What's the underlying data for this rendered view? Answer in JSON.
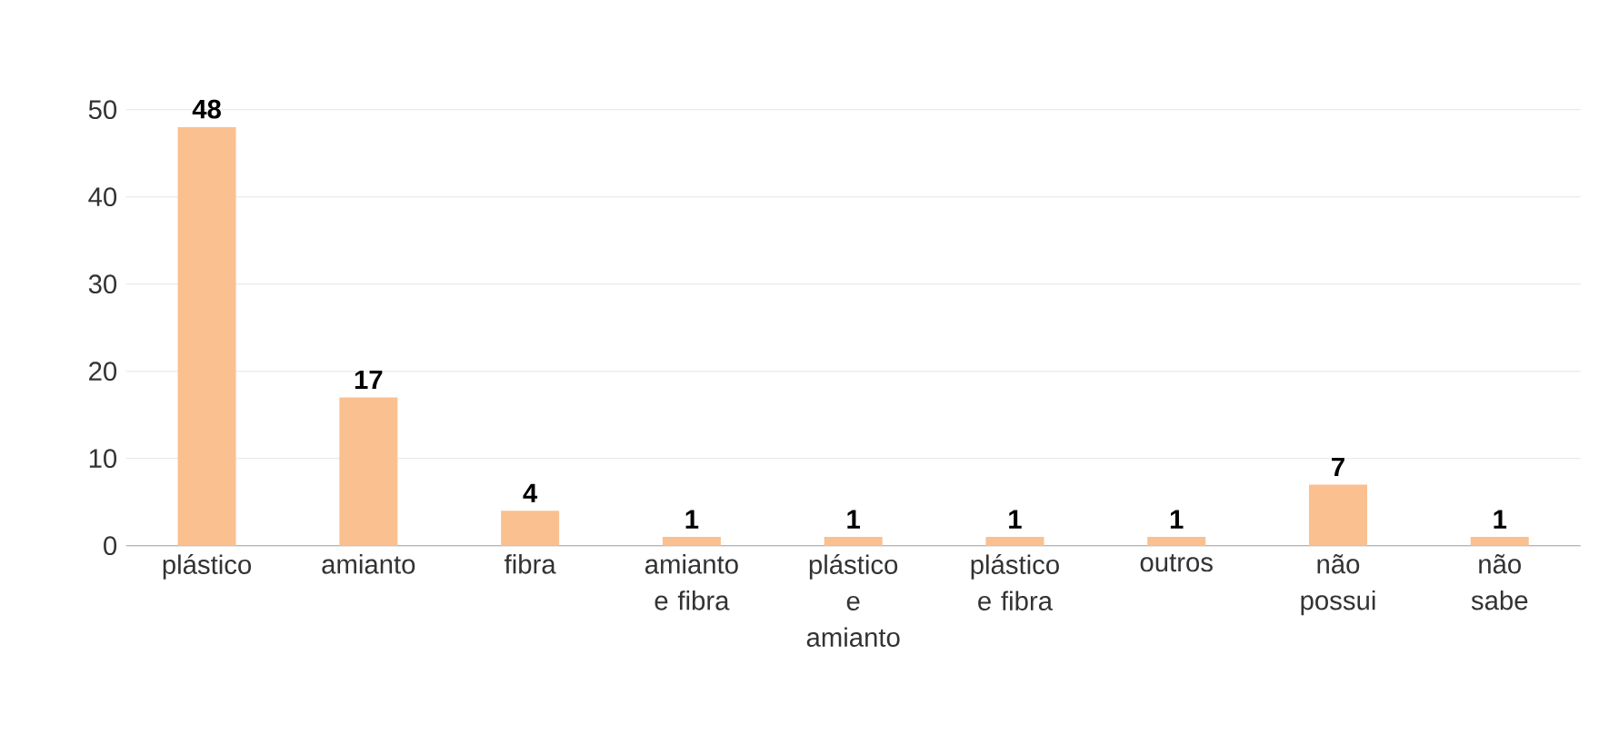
{
  "chart_data": {
    "type": "bar",
    "categories": [
      "plástico",
      "amianto",
      "fibra",
      "amianto e fibra",
      "plástico e amianto",
      "plástico e fibra",
      "outros",
      "não possui",
      "não sabe"
    ],
    "values": [
      48,
      17,
      4,
      1,
      1,
      1,
      1,
      7,
      1
    ],
    "color": "#fac090",
    "ylim": [
      0,
      50
    ],
    "yticks": [
      0,
      10,
      20,
      30,
      40,
      50
    ],
    "grid": "y",
    "data_labels": true
  }
}
